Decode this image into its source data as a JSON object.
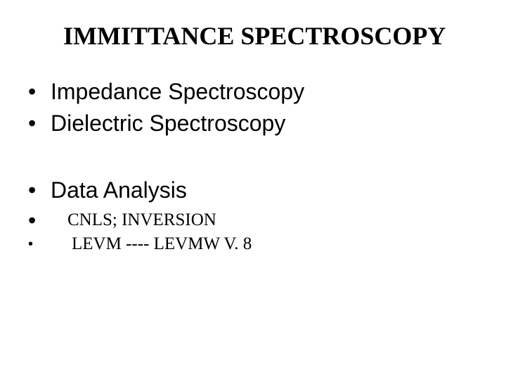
{
  "title": "IMMITTANCE SPECTROSCOPY",
  "bullets": {
    "item1": "Impedance Spectroscopy",
    "item2": "Dielectric Spectroscopy",
    "item3": "Data Analysis",
    "sub1": "CNLS;  INVERSION",
    "sub2": "LEVM ---- LEVMW  V. 8"
  },
  "colors": {
    "background": "#ffffff",
    "text": "#000000"
  },
  "fonts": {
    "title_family": "Times New Roman",
    "title_size": 36,
    "body_family": "Arial",
    "body_size": 32,
    "sub_family": "Times New Roman",
    "sub_size": 25
  }
}
